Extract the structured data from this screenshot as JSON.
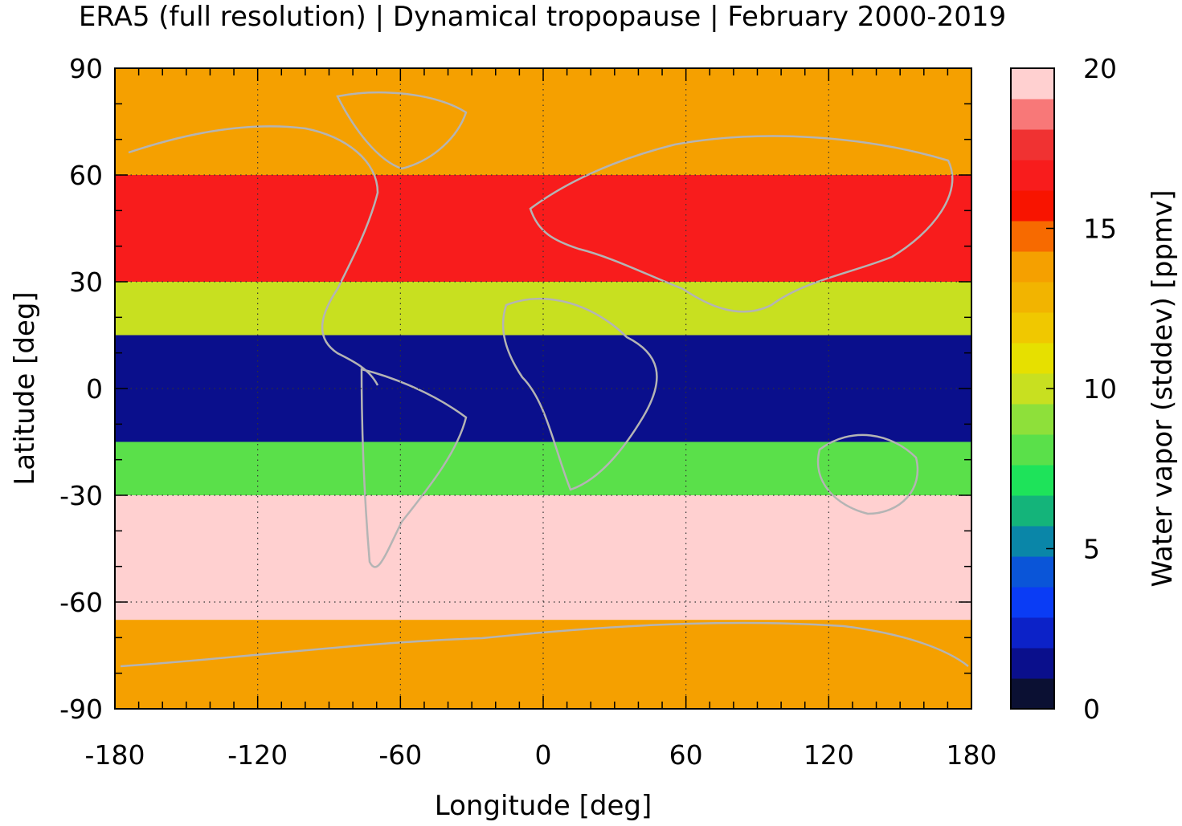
{
  "chart_data": {
    "type": "heatmap",
    "title": "ERA5 (full resolution) | Dynamical tropopause | February 2000-2019",
    "xlabel": "Longitude [deg]",
    "ylabel": "Latitude [deg]",
    "colorbar_label": "Water vapor (stddev) [ppmv]",
    "xlim": [
      -180,
      180
    ],
    "ylim": [
      -90,
      90
    ],
    "x_ticks": [
      -180,
      -120,
      -60,
      0,
      60,
      120,
      180
    ],
    "y_ticks": [
      90,
      60,
      30,
      0,
      -30,
      -60,
      -90
    ],
    "x_tick_labels": [
      "-180",
      "-120",
      "-60",
      "0",
      "60",
      "120",
      "180"
    ],
    "y_tick_labels": [
      "90",
      "60",
      "30",
      "0",
      "-30",
      "-60",
      "-90"
    ],
    "colorbar_ticks": [
      0,
      5,
      10,
      15,
      20
    ],
    "colorbar_tick_labels": [
      "0",
      "5",
      "10",
      "15",
      "20"
    ],
    "colorbar_range": [
      0,
      20
    ],
    "grid": true,
    "grid_style": "dotted",
    "colormap": [
      "#0b1033",
      "#0a0f8c",
      "#0c22c8",
      "#0a3cf5",
      "#0a55d8",
      "#0a86a8",
      "#14b47a",
      "#1ee35a",
      "#5ae04a",
      "#8ee03a",
      "#c8e020",
      "#e6e000",
      "#f0c800",
      "#f2b400",
      "#f5a000",
      "#f76a00",
      "#f81400",
      "#f81c1c",
      "#f03232",
      "#f87878",
      "#ffd0d0"
    ],
    "field_summary": [
      {
        "lat_range": [
          60,
          90
        ],
        "value": 14
      },
      {
        "lat_range": [
          30,
          60
        ],
        "value": 17
      },
      {
        "lat_range": [
          15,
          30
        ],
        "value": 10
      },
      {
        "lat_range": [
          -15,
          15
        ],
        "value": 1
      },
      {
        "lat_range": [
          -30,
          -15
        ],
        "value": 8
      },
      {
        "lat_range": [
          -65,
          -30
        ],
        "value": 20
      },
      {
        "lat_range": [
          -90,
          -65
        ],
        "value": 14
      }
    ]
  }
}
